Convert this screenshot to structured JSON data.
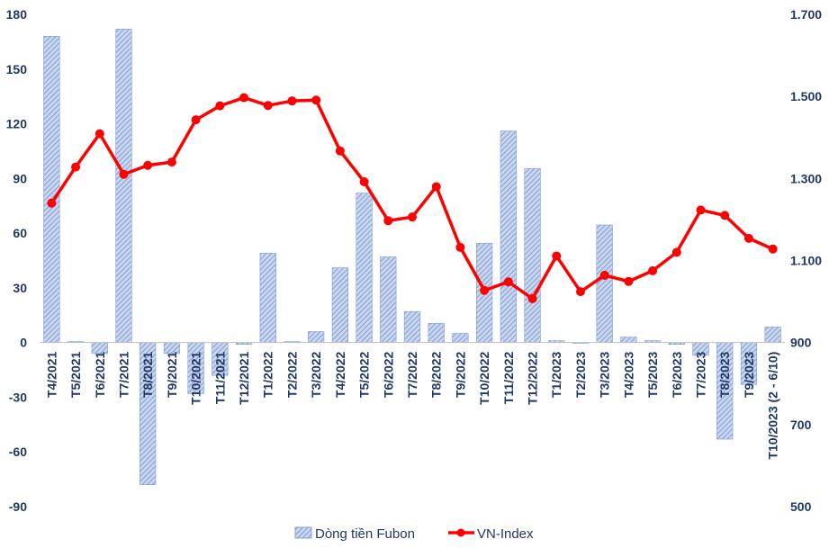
{
  "chart_data": {
    "type": "bar+line",
    "categories": [
      "T4/2021",
      "T5/2021",
      "T6/2021",
      "T7/2021",
      "T8/2021",
      "T9/2021",
      "T10/2021",
      "T11/2021",
      "T12/2021",
      "T1/2022",
      "T2/2022",
      "T3/2022",
      "T4/2022",
      "T5/2022",
      "T6/2022",
      "T7/2022",
      "T8/2022",
      "T9/2022",
      "T10/2022",
      "T11/2022",
      "T12/2022",
      "T1/2023",
      "T2/2023",
      "T3/2023",
      "T4/2023",
      "T5/2023",
      "T6/2023",
      "T7/2023",
      "T8/2023",
      "T9/2023",
      "T10/2023 (2 - 6/10)"
    ],
    "series": [
      {
        "name": "Dòng tiền Fubon",
        "type": "bar",
        "axis": "left",
        "color": "#8eaadb",
        "values": [
          168,
          0.5,
          -6,
          172,
          -78,
          -6,
          -28,
          -18,
          -1,
          49,
          0.5,
          6,
          41,
          82,
          47,
          17,
          10.5,
          5,
          54.5,
          116,
          95.5,
          1,
          0,
          64.5,
          3,
          1,
          -1,
          -7,
          -53,
          -23,
          8.5
        ]
      },
      {
        "name": "VN-Index",
        "type": "line",
        "axis": "right",
        "color": "#ff0000",
        "values": [
          1240,
          1328,
          1409,
          1310,
          1332,
          1340,
          1443,
          1477,
          1497,
          1478,
          1489,
          1491,
          1367,
          1292,
          1197,
          1206,
          1280,
          1132,
          1027,
          1048,
          1007,
          1111,
          1024,
          1064,
          1049,
          1075,
          1120,
          1223,
          1210,
          1154,
          1128
        ]
      }
    ],
    "yleft_ticks": [
      "180",
      "150",
      "120",
      "90",
      "60",
      "30",
      "0",
      "-30",
      "-60",
      "-90"
    ],
    "yleft_lim": [
      -90,
      180
    ],
    "yright_ticks": [
      "1.700",
      "1.500",
      "1.300",
      "1.100",
      "900",
      "700",
      "500"
    ],
    "yright_lim": [
      500,
      1700
    ],
    "legend": {
      "position": "bottom",
      "items": [
        "Dòng tiền Fubon",
        "VN-Index"
      ]
    },
    "title": "",
    "grid": false
  }
}
